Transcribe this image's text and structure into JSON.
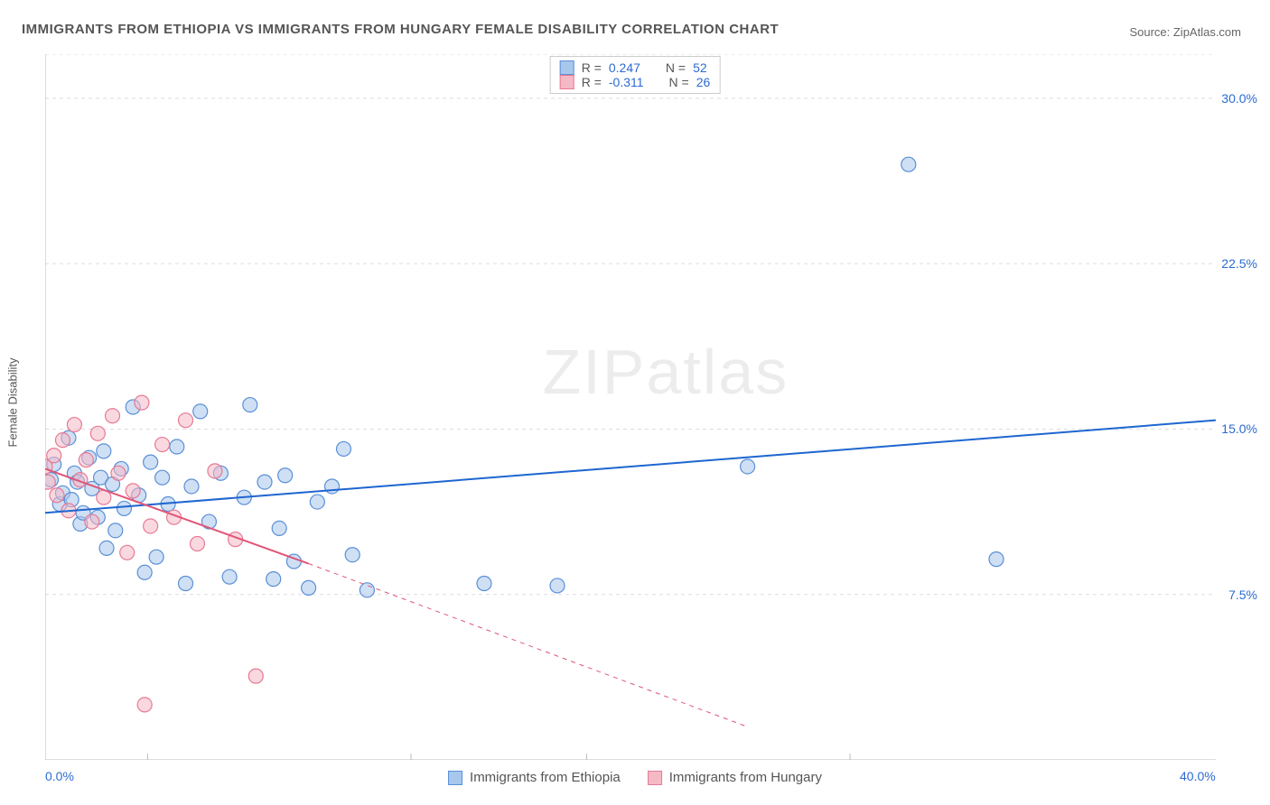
{
  "title": "IMMIGRANTS FROM ETHIOPIA VS IMMIGRANTS FROM HUNGARY FEMALE DISABILITY CORRELATION CHART",
  "source_label": "Source: ",
  "source_value": "ZipAtlas.com",
  "y_axis_label": "Female Disability",
  "watermark": "ZIPatlas",
  "chart": {
    "type": "scatter",
    "xlim": [
      0,
      40
    ],
    "ylim": [
      0,
      32
    ],
    "x_ticks": [
      0,
      40
    ],
    "x_tick_labels": [
      "0.0%",
      "40.0%"
    ],
    "x_minor_ticks": [
      3.5,
      12.5,
      18.5,
      27.5
    ],
    "y_ticks": [
      7.5,
      15.0,
      22.5,
      30.0
    ],
    "y_tick_labels": [
      "7.5%",
      "15.0%",
      "22.5%",
      "30.0%"
    ],
    "background_color": "#ffffff",
    "grid_color": "#dddddd",
    "axis_color": "#bbbbbb",
    "marker_radius": 8,
    "marker_opacity": 0.55,
    "series": [
      {
        "name": "Immigrants from Ethiopia",
        "color_fill": "#a7c7ed",
        "color_stroke": "#5a8fd6",
        "r_value": "0.247",
        "n_value": "52",
        "trend": {
          "x1": 0,
          "y1": 11.2,
          "x2": 40,
          "y2": 15.4,
          "color": "#1e66d0",
          "width": 2,
          "dash": "none",
          "extrapolate_dash": "none"
        },
        "points": [
          [
            0.2,
            12.7
          ],
          [
            0.3,
            13.4
          ],
          [
            0.5,
            11.6
          ],
          [
            0.6,
            12.1
          ],
          [
            0.8,
            14.6
          ],
          [
            0.9,
            11.8
          ],
          [
            1.0,
            13.0
          ],
          [
            1.1,
            12.6
          ],
          [
            1.2,
            10.7
          ],
          [
            1.3,
            11.2
          ],
          [
            1.5,
            13.7
          ],
          [
            1.6,
            12.3
          ],
          [
            1.8,
            11.0
          ],
          [
            1.9,
            12.8
          ],
          [
            2.0,
            14.0
          ],
          [
            2.1,
            9.6
          ],
          [
            2.3,
            12.5
          ],
          [
            2.4,
            10.4
          ],
          [
            2.6,
            13.2
          ],
          [
            2.7,
            11.4
          ],
          [
            3.0,
            16.0
          ],
          [
            3.2,
            12.0
          ],
          [
            3.4,
            8.5
          ],
          [
            3.6,
            13.5
          ],
          [
            3.8,
            9.2
          ],
          [
            4.0,
            12.8
          ],
          [
            4.2,
            11.6
          ],
          [
            4.5,
            14.2
          ],
          [
            4.8,
            8.0
          ],
          [
            5.0,
            12.4
          ],
          [
            5.3,
            15.8
          ],
          [
            5.6,
            10.8
          ],
          [
            6.0,
            13.0
          ],
          [
            6.3,
            8.3
          ],
          [
            6.8,
            11.9
          ],
          [
            7.0,
            16.1
          ],
          [
            7.5,
            12.6
          ],
          [
            7.8,
            8.2
          ],
          [
            8.0,
            10.5
          ],
          [
            8.2,
            12.9
          ],
          [
            8.5,
            9.0
          ],
          [
            9.0,
            7.8
          ],
          [
            9.3,
            11.7
          ],
          [
            9.8,
            12.4
          ],
          [
            10.5,
            9.3
          ],
          [
            11.0,
            7.7
          ],
          [
            15.0,
            8.0
          ],
          [
            17.5,
            7.9
          ],
          [
            24.0,
            13.3
          ],
          [
            29.5,
            27.0
          ],
          [
            32.5,
            9.1
          ],
          [
            10.2,
            14.1
          ]
        ]
      },
      {
        "name": "Immigrants from Hungary",
        "color_fill": "#f5b8c5",
        "color_stroke": "#e77a95",
        "r_value": "-0.311",
        "n_value": "26",
        "trend": {
          "x1": 0,
          "y1": 13.2,
          "x2": 9,
          "y2": 8.9,
          "color": "#e05577",
          "width": 2,
          "dash": "none",
          "extrapolate_x": 24,
          "extrapolate_y": 1.5,
          "extrapolate_dash": "5,5"
        },
        "points": [
          [
            0.0,
            13.3
          ],
          [
            0.1,
            12.6
          ],
          [
            0.3,
            13.8
          ],
          [
            0.4,
            12.0
          ],
          [
            0.6,
            14.5
          ],
          [
            0.8,
            11.3
          ],
          [
            1.0,
            15.2
          ],
          [
            1.2,
            12.7
          ],
          [
            1.4,
            13.6
          ],
          [
            1.6,
            10.8
          ],
          [
            1.8,
            14.8
          ],
          [
            2.0,
            11.9
          ],
          [
            2.3,
            15.6
          ],
          [
            2.5,
            13.0
          ],
          [
            2.8,
            9.4
          ],
          [
            3.0,
            12.2
          ],
          [
            3.3,
            16.2
          ],
          [
            3.6,
            10.6
          ],
          [
            4.0,
            14.3
          ],
          [
            4.4,
            11.0
          ],
          [
            4.8,
            15.4
          ],
          [
            5.2,
            9.8
          ],
          [
            5.8,
            13.1
          ],
          [
            6.5,
            10.0
          ],
          [
            3.4,
            2.5
          ],
          [
            7.2,
            3.8
          ]
        ]
      }
    ]
  },
  "legend_top": [
    {
      "swatch_fill": "#a7c7ed",
      "swatch_stroke": "#5a8fd6",
      "r": "0.247",
      "n": "52"
    },
    {
      "swatch_fill": "#f5b8c5",
      "swatch_stroke": "#e77a95",
      "r": "-0.311",
      "n": "26"
    }
  ],
  "legend_bottom": [
    {
      "swatch_fill": "#a7c7ed",
      "swatch_stroke": "#5a8fd6",
      "label": "Immigrants from Ethiopia"
    },
    {
      "swatch_fill": "#f5b8c5",
      "swatch_stroke": "#e77a95",
      "label": "Immigrants from Hungary"
    }
  ]
}
